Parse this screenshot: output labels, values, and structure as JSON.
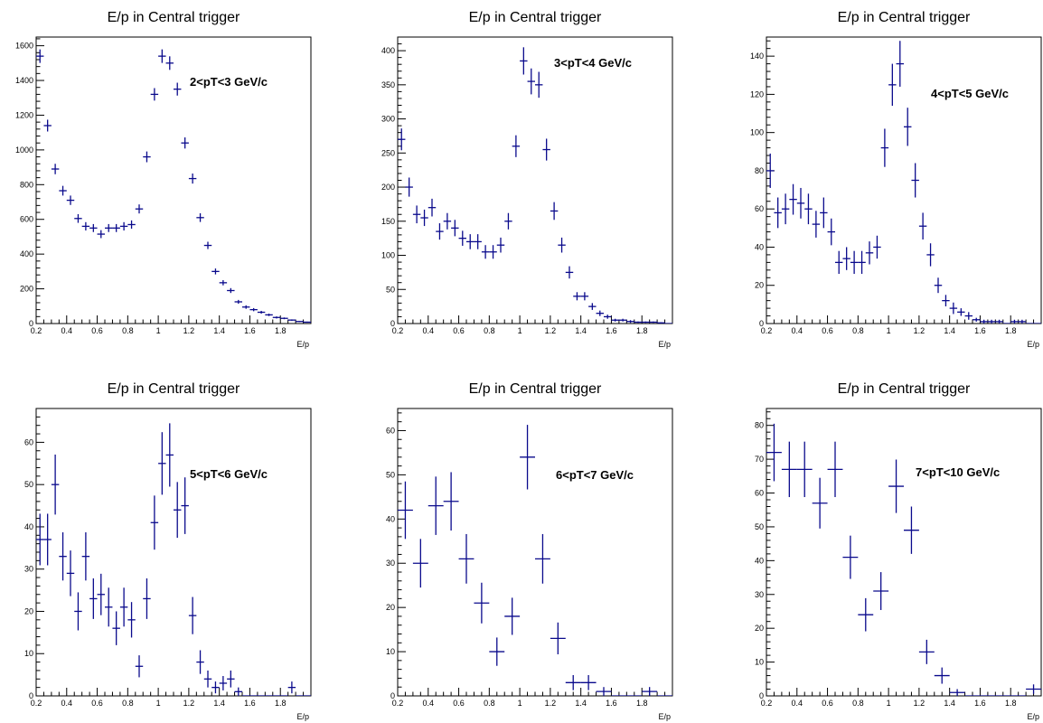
{
  "style": {
    "marker_color": "#0a0a8c",
    "axis_color": "#000000"
  },
  "chart_data": [
    {
      "type": "scatter",
      "title": "E/p in Central trigger",
      "xlabel": "E/p",
      "annotation": "2<pT<3 GeV/c",
      "xlim": [
        0.2,
        2.0
      ],
      "ylim": [
        0,
        1650
      ],
      "xticks": [
        "0.2",
        "0.4",
        "0.6",
        "0.8",
        "1",
        "1.2",
        "1.4",
        "1.6",
        "1.8"
      ],
      "yticks": [
        "0",
        "200",
        "400",
        "600",
        "800",
        "1000",
        "1200",
        "1400",
        "1600"
      ],
      "bin_width": 0.05,
      "x": [
        0.225,
        0.275,
        0.325,
        0.375,
        0.425,
        0.475,
        0.525,
        0.575,
        0.625,
        0.675,
        0.725,
        0.775,
        0.825,
        0.875,
        0.925,
        0.975,
        1.025,
        1.075,
        1.125,
        1.175,
        1.225,
        1.275,
        1.325,
        1.375,
        1.425,
        1.475,
        1.525,
        1.575,
        1.625,
        1.675,
        1.725,
        1.775,
        1.825,
        1.875,
        1.925,
        1.975
      ],
      "y": [
        1540,
        1140,
        890,
        765,
        710,
        605,
        560,
        550,
        515,
        550,
        550,
        560,
        570,
        660,
        960,
        1320,
        1540,
        1500,
        1350,
        1040,
        835,
        610,
        450,
        300,
        235,
        190,
        125,
        95,
        80,
        65,
        50,
        35,
        30,
        20,
        12,
        8
      ],
      "yerr": [
        39,
        34,
        30,
        28,
        27,
        25,
        24,
        23,
        23,
        23,
        23,
        24,
        24,
        26,
        31,
        36,
        39,
        39,
        37,
        32,
        29,
        25,
        21,
        17,
        15,
        14,
        11,
        10,
        9,
        8,
        7,
        6,
        5,
        4,
        3,
        3
      ]
    },
    {
      "type": "scatter",
      "title": "E/p in Central trigger",
      "xlabel": "E/p",
      "annotation": "3<pT<4 GeV/c",
      "xlim": [
        0.2,
        2.0
      ],
      "ylim": [
        0,
        420
      ],
      "xticks": [
        "0.2",
        "0.4",
        "0.6",
        "0.8",
        "1",
        "1.2",
        "1.4",
        "1.6",
        "1.8"
      ],
      "yticks": [
        "0",
        "50",
        "100",
        "150",
        "200",
        "250",
        "300",
        "350",
        "400"
      ],
      "bin_width": 0.05,
      "x": [
        0.225,
        0.275,
        0.325,
        0.375,
        0.425,
        0.475,
        0.525,
        0.575,
        0.625,
        0.675,
        0.725,
        0.775,
        0.825,
        0.875,
        0.925,
        0.975,
        1.025,
        1.075,
        1.125,
        1.175,
        1.225,
        1.275,
        1.325,
        1.375,
        1.425,
        1.475,
        1.525,
        1.575,
        1.625,
        1.675,
        1.725,
        1.775,
        1.825,
        1.875,
        1.925,
        1.975
      ],
      "y": [
        270,
        200,
        160,
        155,
        170,
        135,
        150,
        140,
        125,
        120,
        120,
        105,
        105,
        115,
        150,
        260,
        385,
        355,
        350,
        255,
        165,
        115,
        75,
        40,
        40,
        25,
        15,
        10,
        5,
        5,
        3,
        2,
        2,
        2,
        1,
        0
      ],
      "yerr": [
        16,
        14,
        13,
        12,
        13,
        12,
        12,
        12,
        11,
        11,
        11,
        10,
        10,
        11,
        12,
        16,
        20,
        19,
        19,
        16,
        13,
        11,
        9,
        6,
        6,
        5,
        4,
        3,
        2,
        2,
        2,
        1,
        1,
        1,
        1,
        0
      ]
    },
    {
      "type": "scatter",
      "title": "E/p in Central trigger",
      "xlabel": "E/p",
      "annotation": "4<pT<5 GeV/c",
      "xlim": [
        0.2,
        2.0
      ],
      "ylim": [
        0,
        150
      ],
      "xticks": [
        "0.2",
        "0.4",
        "0.6",
        "0.8",
        "1",
        "1.2",
        "1.4",
        "1.6",
        "1.8"
      ],
      "yticks": [
        "0",
        "20",
        "40",
        "60",
        "80",
        "100",
        "120",
        "140"
      ],
      "bin_width": 0.05,
      "x": [
        0.225,
        0.275,
        0.325,
        0.375,
        0.425,
        0.475,
        0.525,
        0.575,
        0.625,
        0.675,
        0.725,
        0.775,
        0.825,
        0.875,
        0.925,
        0.975,
        1.025,
        1.075,
        1.125,
        1.175,
        1.225,
        1.275,
        1.325,
        1.375,
        1.425,
        1.475,
        1.525,
        1.575,
        1.625,
        1.675,
        1.725,
        1.775,
        1.825,
        1.875,
        1.925,
        1.975
      ],
      "y": [
        80,
        58,
        60,
        65,
        63,
        60,
        52,
        58,
        48,
        32,
        34,
        32,
        32,
        37,
        40,
        92,
        125,
        136,
        103,
        75,
        51,
        36,
        20,
        12,
        8,
        6,
        4,
        2,
        1,
        1,
        1,
        0,
        1,
        1,
        0,
        0
      ],
      "yerr": [
        9,
        8,
        8,
        8,
        8,
        8,
        7,
        8,
        7,
        6,
        6,
        6,
        6,
        6,
        6,
        10,
        11,
        12,
        10,
        9,
        7,
        6,
        4,
        3,
        3,
        2,
        2,
        1,
        1,
        1,
        1,
        0,
        1,
        1,
        0,
        0
      ]
    },
    {
      "type": "scatter",
      "title": "E/p in Central trigger",
      "xlabel": "E/p",
      "annotation": "5<pT<6 GeV/c",
      "xlim": [
        0.2,
        2.0
      ],
      "ylim": [
        0,
        68
      ],
      "xticks": [
        "0.2",
        "0.4",
        "0.6",
        "0.8",
        "1",
        "1.2",
        "1.4",
        "1.6",
        "1.8"
      ],
      "yticks": [
        "0",
        "10",
        "20",
        "30",
        "40",
        "50",
        "60"
      ],
      "bin_width": 0.05,
      "x": [
        0.225,
        0.275,
        0.325,
        0.375,
        0.425,
        0.475,
        0.525,
        0.575,
        0.625,
        0.675,
        0.725,
        0.775,
        0.825,
        0.875,
        0.925,
        0.975,
        1.025,
        1.075,
        1.125,
        1.175,
        1.225,
        1.275,
        1.325,
        1.375,
        1.425,
        1.475,
        1.525,
        1.575,
        1.625,
        1.675,
        1.725,
        1.775,
        1.825,
        1.875,
        1.925,
        1.975
      ],
      "y": [
        37,
        37,
        50,
        33,
        29,
        20,
        33,
        23,
        24,
        21,
        16,
        21,
        18,
        7,
        23,
        41,
        55,
        57,
        44,
        45,
        19,
        8,
        4,
        2,
        3,
        4,
        1,
        0,
        0,
        0,
        0,
        0,
        0,
        2,
        0,
        0
      ],
      "yerr": [
        6.1,
        6.1,
        7.1,
        5.7,
        5.4,
        4.5,
        5.7,
        4.8,
        4.9,
        4.6,
        4,
        4.6,
        4.2,
        2.6,
        4.8,
        6.4,
        7.4,
        7.5,
        6.6,
        6.7,
        4.4,
        2.8,
        2,
        1.4,
        1.7,
        2,
        1,
        0,
        0,
        0,
        0,
        0,
        0,
        1.4,
        0,
        0
      ]
    },
    {
      "type": "scatter",
      "title": "E/p in Central trigger",
      "xlabel": "E/p",
      "annotation": "6<pT<7 GeV/c",
      "xlim": [
        0.2,
        2.0
      ],
      "ylim": [
        0,
        65
      ],
      "xticks": [
        "0.2",
        "0.4",
        "0.6",
        "0.8",
        "1",
        "1.2",
        "1.4",
        "1.6",
        "1.8"
      ],
      "yticks": [
        "0",
        "10",
        "20",
        "30",
        "40",
        "50",
        "60"
      ],
      "bin_width": 0.1,
      "x": [
        0.25,
        0.35,
        0.45,
        0.55,
        0.65,
        0.75,
        0.85,
        0.95,
        1.05,
        1.15,
        1.25,
        1.35,
        1.45,
        1.55,
        1.65,
        1.75,
        1.85,
        1.95
      ],
      "y": [
        42,
        30,
        43,
        44,
        31,
        21,
        10,
        18,
        54,
        31,
        13,
        3,
        3,
        1,
        0,
        0,
        1,
        0
      ],
      "yerr": [
        6.5,
        5.5,
        6.6,
        6.6,
        5.6,
        4.6,
        3.2,
        4.2,
        7.3,
        5.6,
        3.6,
        1.7,
        1.7,
        1,
        0,
        0,
        1,
        0
      ]
    },
    {
      "type": "scatter",
      "title": "E/p in Central trigger",
      "xlabel": "E/p",
      "annotation": "7<pT<10 GeV/c",
      "xlim": [
        0.2,
        2.0
      ],
      "ylim": [
        0,
        85
      ],
      "xticks": [
        "0.2",
        "0.4",
        "0.6",
        "0.8",
        "1",
        "1.2",
        "1.4",
        "1.6",
        "1.8"
      ],
      "yticks": [
        "0",
        "10",
        "20",
        "30",
        "40",
        "50",
        "60",
        "70",
        "80"
      ],
      "bin_width": 0.1,
      "x": [
        0.25,
        0.35,
        0.45,
        0.55,
        0.65,
        0.75,
        0.85,
        0.95,
        1.05,
        1.15,
        1.25,
        1.35,
        1.45,
        1.55,
        1.65,
        1.75,
        1.85,
        1.95
      ],
      "y": [
        72,
        67,
        67,
        57,
        67,
        41,
        24,
        31,
        62,
        49,
        13,
        6,
        1,
        0,
        0,
        0,
        0,
        2
      ],
      "yerr": [
        8.5,
        8.2,
        8.2,
        7.5,
        8.2,
        6.4,
        4.9,
        5.6,
        7.9,
        7,
        3.6,
        2.4,
        1,
        0,
        0,
        0,
        0,
        1.4
      ]
    }
  ]
}
